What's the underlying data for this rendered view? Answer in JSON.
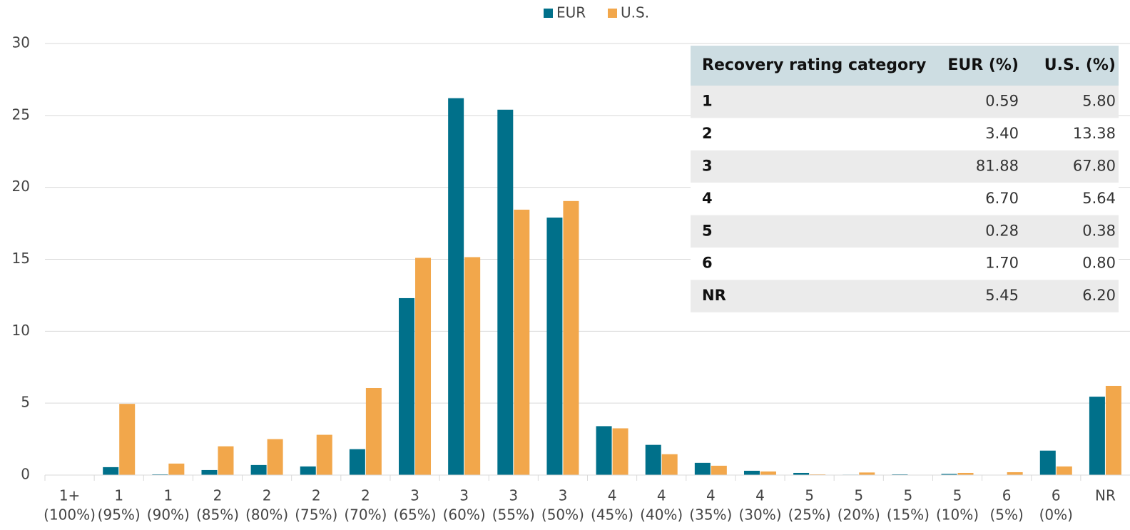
{
  "chart_data": {
    "type": "bar",
    "categories": [
      [
        "1+",
        "(100%)"
      ],
      [
        "1",
        "(95%)"
      ],
      [
        "1",
        "(90%)"
      ],
      [
        "2",
        "(85%)"
      ],
      [
        "2",
        "(80%)"
      ],
      [
        "2",
        "(75%)"
      ],
      [
        "2",
        "(70%)"
      ],
      [
        "3",
        "(65%)"
      ],
      [
        "3",
        "(60%)"
      ],
      [
        "3",
        "(55%)"
      ],
      [
        "3",
        "(50%)"
      ],
      [
        "4",
        "(45%)"
      ],
      [
        "4",
        "(40%)"
      ],
      [
        "4",
        "(35%)"
      ],
      [
        "4",
        "(30%)"
      ],
      [
        "5",
        "(25%)"
      ],
      [
        "5",
        "(20%)"
      ],
      [
        "5",
        "(15%)"
      ],
      [
        "5",
        "(10%)"
      ],
      [
        "6",
        "(5%)"
      ],
      [
        "6",
        "(0%)"
      ],
      [
        "NR"
      ]
    ],
    "series": [
      {
        "name": "EUR",
        "color": "#00708a",
        "values": [
          0,
          0.55,
          0.05,
          0.35,
          0.7,
          0.6,
          1.8,
          12.3,
          26.2,
          25.4,
          17.9,
          3.4,
          2.1,
          0.85,
          0.3,
          0.15,
          0.03,
          0.05,
          0.08,
          0,
          1.7,
          5.45
        ]
      },
      {
        "name": "U.S.",
        "color": "#f2a74b",
        "values": [
          0,
          4.95,
          0.8,
          2.0,
          2.5,
          2.8,
          6.05,
          15.1,
          15.15,
          18.45,
          19.05,
          3.25,
          1.45,
          0.65,
          0.25,
          0.05,
          0.18,
          0.02,
          0.15,
          0.2,
          0.6,
          6.2
        ]
      }
    ],
    "ylim": [
      0,
      30
    ],
    "yticks": [
      0,
      5,
      10,
      15,
      20,
      25,
      30
    ],
    "grid": true,
    "legend": "top"
  },
  "table": {
    "header": [
      "Recovery rating category",
      "EUR (%)",
      "U.S. (%)"
    ],
    "rows": [
      [
        "1",
        "0.59",
        "5.80"
      ],
      [
        "2",
        "3.40",
        "13.38"
      ],
      [
        "3",
        "81.88",
        "67.80"
      ],
      [
        "4",
        "6.70",
        "5.64"
      ],
      [
        "5",
        "0.28",
        "0.38"
      ],
      [
        "6",
        "1.70",
        "0.80"
      ],
      [
        "NR",
        "5.45",
        "6.20"
      ]
    ]
  }
}
